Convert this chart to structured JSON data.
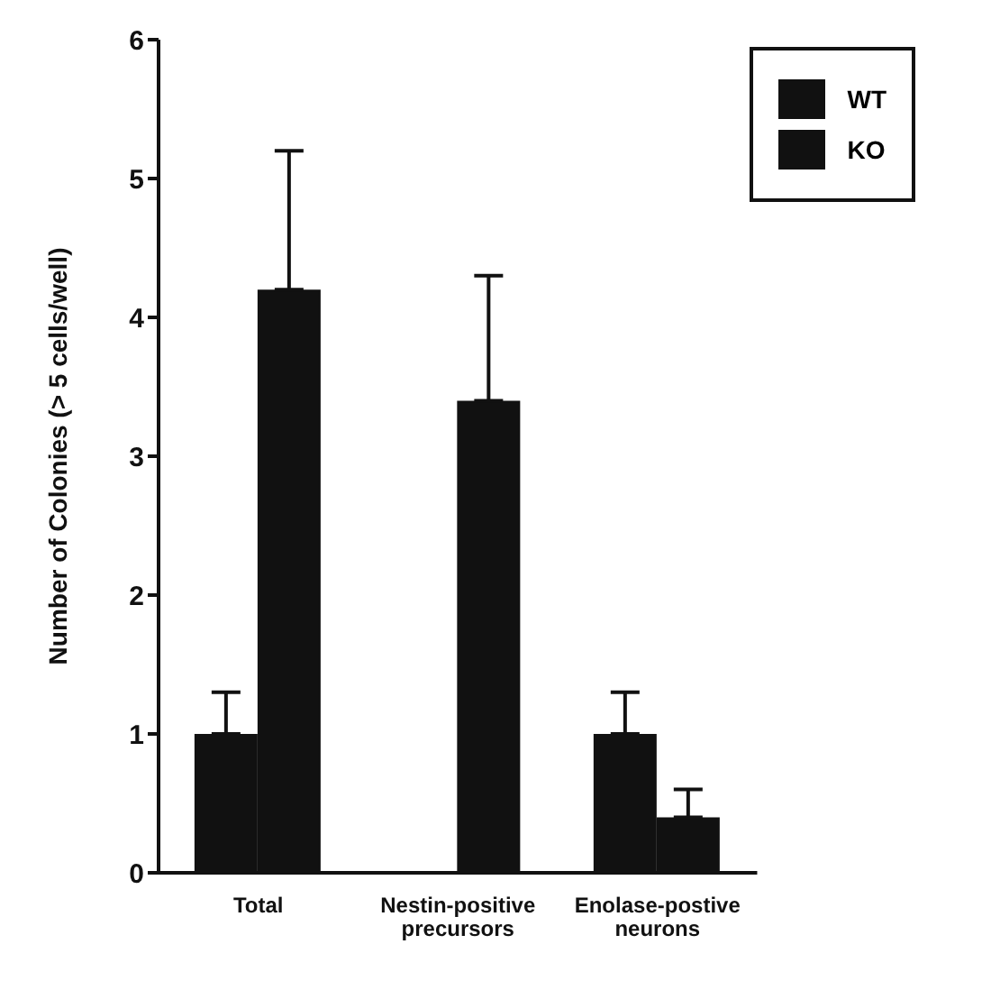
{
  "chart_data": {
    "type": "bar",
    "ylabel": "Number of Colonies (> 5 cells/well)",
    "categories": [
      "Total",
      "Nestin-positive precursors",
      "Enolase-postive neurons"
    ],
    "series": [
      {
        "name": "WT",
        "color": "#111111",
        "values": [
          1.0,
          0,
          1.0
        ],
        "errors": [
          [
            1.0,
            1.3
          ],
          null,
          [
            1.0,
            1.3
          ]
        ]
      },
      {
        "name": "KO",
        "color": "#111111",
        "values": [
          4.2,
          3.4,
          0.4
        ],
        "errors": [
          [
            4.2,
            5.2
          ],
          [
            3.4,
            4.3
          ],
          [
            0.4,
            0.6
          ]
        ]
      }
    ],
    "ylim": [
      0,
      6
    ],
    "yticks": [
      0,
      1,
      2,
      3,
      4,
      5,
      6
    ],
    "grid": false,
    "legend": "top right"
  }
}
